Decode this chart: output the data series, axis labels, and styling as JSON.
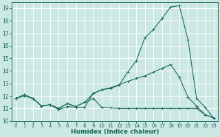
{
  "xlabel": "Humidex (Indice chaleur)",
  "xlim": [
    -0.5,
    23.5
  ],
  "ylim": [
    10,
    19.5
  ],
  "yticks": [
    10,
    11,
    12,
    13,
    14,
    15,
    16,
    17,
    18,
    19
  ],
  "xticks": [
    0,
    1,
    2,
    3,
    4,
    5,
    6,
    7,
    8,
    9,
    10,
    11,
    12,
    13,
    14,
    15,
    16,
    17,
    18,
    19,
    20,
    21,
    22,
    23
  ],
  "bg_color": "#cce8e4",
  "grid_color": "#ffffff",
  "line_color": "#1a6b5a",
  "line1_y": [
    11.8,
    12.0,
    11.8,
    11.2,
    11.3,
    10.9,
    11.15,
    11.1,
    11.1,
    12.2,
    12.5,
    12.6,
    12.85,
    13.9,
    14.8,
    16.65,
    17.3,
    18.2,
    19.1,
    19.2,
    16.5,
    11.8,
    11.1,
    10.2
  ],
  "line2_y": [
    11.8,
    12.1,
    11.8,
    11.2,
    11.3,
    11.0,
    11.4,
    11.15,
    11.5,
    12.2,
    12.5,
    12.65,
    12.9,
    13.15,
    13.4,
    13.6,
    13.9,
    14.2,
    14.5,
    13.5,
    11.9,
    11.2,
    10.5,
    10.25
  ],
  "line3_y": [
    11.8,
    12.1,
    11.8,
    11.2,
    11.3,
    11.0,
    11.4,
    11.15,
    11.5,
    11.8,
    11.1,
    11.05,
    11.0,
    11.0,
    11.0,
    11.0,
    11.0,
    11.0,
    11.0,
    11.0,
    11.0,
    11.0,
    10.5,
    10.25
  ]
}
